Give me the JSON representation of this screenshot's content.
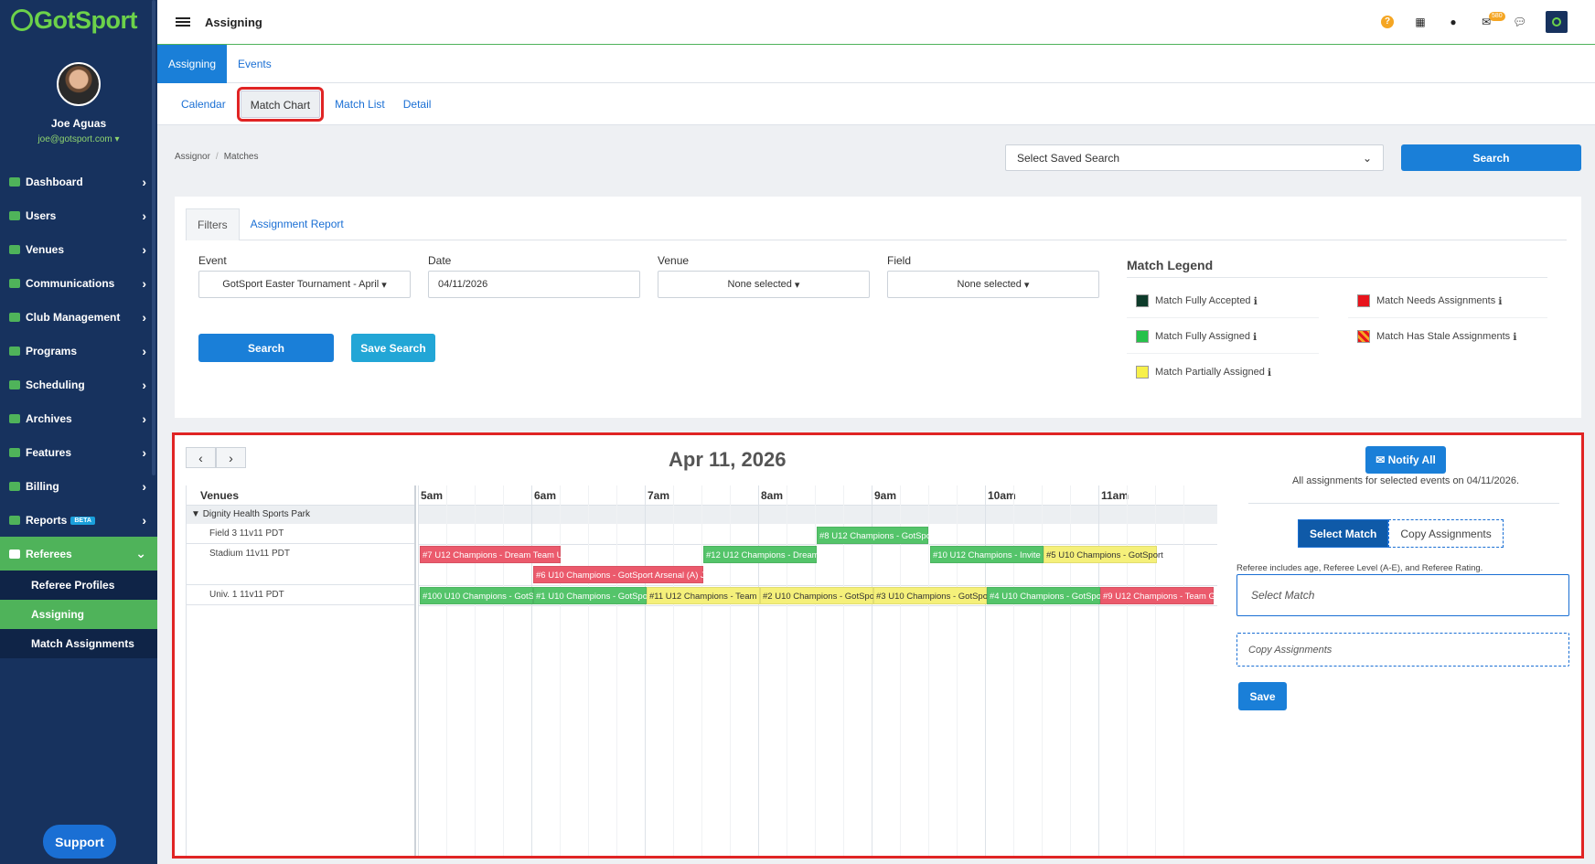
{
  "app": {
    "brand": "GotSport",
    "page_title": "Assigning"
  },
  "user": {
    "name": "Joe Aguas",
    "email": "joe@gotsport.com"
  },
  "sidebar": {
    "items": [
      {
        "label": "Dashboard",
        "icon": "dashboard-icon"
      },
      {
        "label": "Users",
        "icon": "users-icon"
      },
      {
        "label": "Venues",
        "icon": "venues-icon"
      },
      {
        "label": "Communications",
        "icon": "communications-icon"
      },
      {
        "label": "Club Management",
        "icon": "club-icon"
      },
      {
        "label": "Programs",
        "icon": "programs-icon"
      },
      {
        "label": "Scheduling",
        "icon": "scheduling-icon"
      },
      {
        "label": "Archives",
        "icon": "archives-icon"
      },
      {
        "label": "Features",
        "icon": "star-icon"
      },
      {
        "label": "Billing",
        "icon": "billing-icon"
      },
      {
        "label": "Reports",
        "icon": "reports-icon",
        "badge": "BETA"
      },
      {
        "label": "Referees",
        "icon": "whistle-icon"
      }
    ],
    "subitems": [
      {
        "label": "Referee Profiles"
      },
      {
        "label": "Assigning"
      },
      {
        "label": "Match Assignments"
      }
    ],
    "support": "Support"
  },
  "topbar": {
    "message_badge": "580"
  },
  "module_tabs": [
    "Assigning",
    "Events"
  ],
  "sub_tabs": [
    "Calendar",
    "Match Chart",
    "Match List",
    "Detail"
  ],
  "breadcrumb": [
    "Assignor",
    "Matches"
  ],
  "saved_search": {
    "value": "Select Saved Search",
    "button": "Search"
  },
  "filters": {
    "tabs": [
      "Filters",
      "Assignment Report"
    ],
    "event": {
      "label": "Event",
      "value": "GotSport Easter Tournament - April"
    },
    "date": {
      "label": "Date",
      "value": "04/11/2026"
    },
    "venue": {
      "label": "Venue",
      "value": "None selected"
    },
    "field": {
      "label": "Field",
      "value": "None selected"
    },
    "search_button": "Search",
    "save_button": "Save Search"
  },
  "legend": {
    "title": "Match Legend",
    "items": [
      {
        "label": "Match Fully Accepted",
        "color": "#0d3b2a"
      },
      {
        "label": "Match Needs Assignments",
        "color": "#e8141c"
      },
      {
        "label": "Match Fully Assigned",
        "color": "#26c14a"
      },
      {
        "label": "Match Has Stale Assignments",
        "color": "striped-orange"
      },
      {
        "label": "Match Partially Assigned",
        "color": "#f7f04a"
      }
    ]
  },
  "chart": {
    "date": "Apr 11, 2026",
    "venues_header": "Venues",
    "group": "Dignity Health Sports Park",
    "hours": [
      "5am",
      "6am",
      "7am",
      "8am",
      "9am",
      "10am",
      "11am"
    ],
    "fields": [
      "Field 3 11v11 PDT",
      "Stadium 11v11 PDT",
      "Univ. 1 11v11 PDT"
    ],
    "matches": [
      {
        "label": "#8 U12 Champions - GotSport",
        "status": "green"
      },
      {
        "label": "#7 U12 Champions - Dream Team U",
        "status": "red"
      },
      {
        "label": "#12 U12 Champions - Dream",
        "status": "green"
      },
      {
        "label": "#10 U12 Champions - Invite",
        "status": "green"
      },
      {
        "label": "#5 U10 Champions - GotSport",
        "status": "yellow"
      },
      {
        "label": "#6 U10 Champions - GotSport Arsenal (A) J",
        "status": "red"
      },
      {
        "label": "#100 U10 Champions - GotSport",
        "status": "green"
      },
      {
        "label": "#1 U10 Champions - GotSport",
        "status": "green"
      },
      {
        "label": "#11 U12 Champions - Team",
        "status": "yellow"
      },
      {
        "label": "#2 U10 Champions - GotSport",
        "status": "yellow"
      },
      {
        "label": "#3 U10 Champions - GotSport",
        "status": "yellow"
      },
      {
        "label": "#4 U10 Champions - GotSport",
        "status": "green"
      },
      {
        "label": "#9 U12 Champions - Team G",
        "status": "red"
      }
    ]
  },
  "assign_panel": {
    "notify_button": "Notify All",
    "notify_text": "All assignments for selected events on 04/11/2026.",
    "toggle": [
      "Select Match",
      "Copy Assignments"
    ],
    "help": "Referee includes age, Referee Level (A-E), and Referee Rating.",
    "select_placeholder": "Select Match",
    "copy_placeholder": "Copy Assignments",
    "save": "Save"
  }
}
